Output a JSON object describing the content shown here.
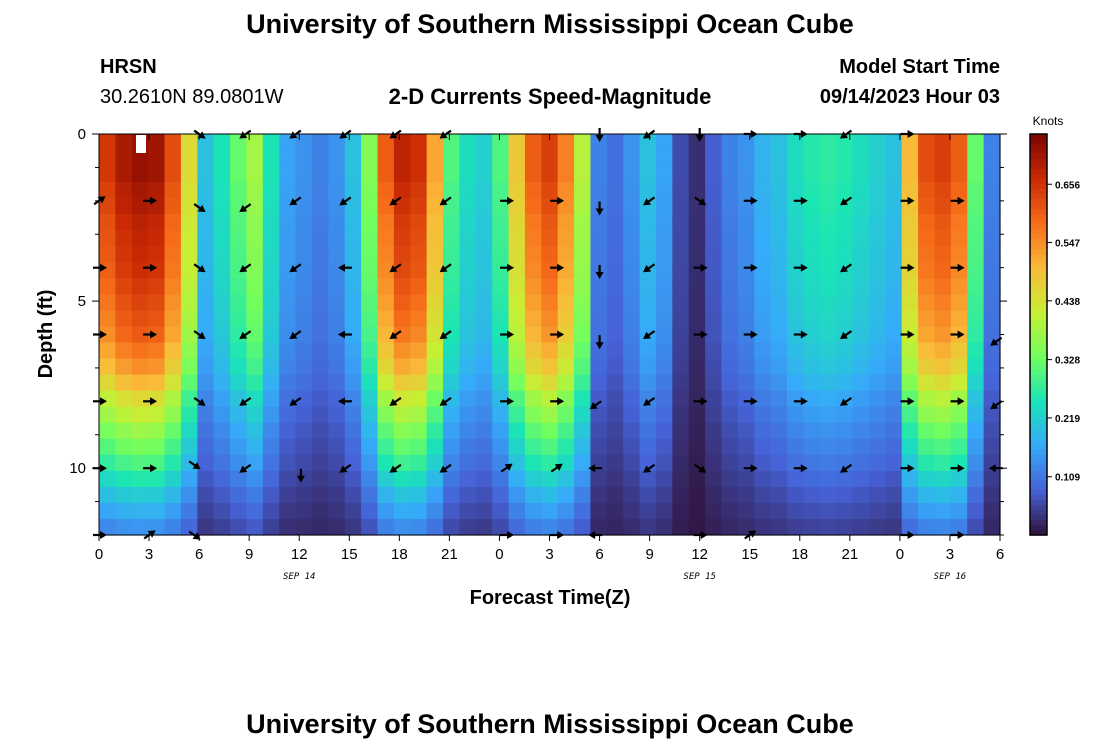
{
  "header": {
    "title": "University of Southern Mississippi Ocean Cube",
    "station": "HRSN",
    "coordinates": "30.2610N  89.0801W",
    "plot_title": "2-D Currents Speed-Magnitude",
    "model_start_label": "Model Start Time",
    "model_start_value": "09/14/2023 Hour 03"
  },
  "footer": {
    "title": "University of Southern Mississippi Ocean Cube"
  },
  "chart_data": {
    "type": "heatmap",
    "title": "2-D Currents Speed-Magnitude",
    "xlabel": "Forecast Time(Z)",
    "ylabel": "Depth (ft)",
    "x_range_hours": [
      0,
      54
    ],
    "ylim": [
      0,
      12
    ],
    "x_tick_labels": [
      "0",
      "3",
      "6",
      "9",
      "12",
      "15",
      "18",
      "21",
      "0",
      "3",
      "6",
      "9",
      "12",
      "15",
      "18",
      "21",
      "0",
      "3",
      "6"
    ],
    "y_ticks": [
      0,
      5,
      10
    ],
    "day_labels": [
      {
        "label": "SEP 14",
        "hour": 12
      },
      {
        "label": "SEP 15",
        "hour": 36
      },
      {
        "label": "SEP 16",
        "hour": 51
      }
    ],
    "colorbar": {
      "unit": "Knots",
      "range": [
        0.0,
        0.75
      ],
      "ticks": [
        "0.656",
        "0.547",
        "0.438",
        "0.328",
        "0.219",
        "0.109"
      ],
      "tick_values": [
        0.656,
        0.547,
        0.438,
        0.328,
        0.219,
        0.109
      ],
      "colors": [
        "#30123b",
        "#4662d7",
        "#36aaf9",
        "#1ae4b6",
        "#72fe5e",
        "#c7ef34",
        "#faba39",
        "#f66b19",
        "#ca2a04",
        "#7a0403"
      ]
    },
    "time_hours": [
      0,
      1,
      2,
      3,
      4,
      5,
      6,
      7,
      8,
      9,
      10,
      11,
      12,
      13,
      14,
      15,
      16,
      17,
      18,
      19,
      20,
      21,
      22,
      23,
      24,
      25,
      26,
      27,
      28,
      29,
      30,
      31,
      32,
      33,
      34,
      35,
      36,
      37,
      38,
      39,
      40,
      41,
      42,
      43,
      44,
      45,
      46,
      47,
      48,
      49,
      50,
      51,
      52,
      53,
      54
    ],
    "surface_speed_knots": [
      0.65,
      0.7,
      0.72,
      0.71,
      0.62,
      0.45,
      0.2,
      0.25,
      0.32,
      0.38,
      0.25,
      0.16,
      0.14,
      0.12,
      0.14,
      0.2,
      0.35,
      0.6,
      0.68,
      0.66,
      0.52,
      0.3,
      0.24,
      0.22,
      0.3,
      0.48,
      0.6,
      0.64,
      0.56,
      0.4,
      0.12,
      0.1,
      0.14,
      0.2,
      0.16,
      0.06,
      0.03,
      0.08,
      0.12,
      0.14,
      0.18,
      0.2,
      0.24,
      0.26,
      0.27,
      0.26,
      0.24,
      0.22,
      0.2,
      0.5,
      0.62,
      0.64,
      0.6,
      0.32,
      0.12
    ],
    "depth_factor": [
      1.0,
      1.0,
      1.0,
      0.98,
      0.97,
      0.95,
      0.94,
      0.93,
      0.92,
      0.9,
      0.88,
      0.86,
      0.84,
      0.8,
      0.76,
      0.7,
      0.63,
      0.58,
      0.52,
      0.47,
      0.42,
      0.36,
      0.3,
      0.25,
      0.2
    ],
    "arrows": [
      {
        "t": 0,
        "d": 2.0,
        "dir": "ne"
      },
      {
        "t": 0,
        "d": 4.0,
        "dir": "e"
      },
      {
        "t": 0,
        "d": 6.0,
        "dir": "e"
      },
      {
        "t": 0,
        "d": 8.0,
        "dir": "e"
      },
      {
        "t": 0,
        "d": 10.0,
        "dir": "e"
      },
      {
        "t": 0,
        "d": 12.0,
        "dir": "e"
      },
      {
        "t": 3,
        "d": 2.0,
        "dir": "e"
      },
      {
        "t": 3,
        "d": 4.0,
        "dir": "e"
      },
      {
        "t": 3,
        "d": 6.0,
        "dir": "e"
      },
      {
        "t": 3,
        "d": 8.0,
        "dir": "e"
      },
      {
        "t": 3,
        "d": 10.0,
        "dir": "e"
      },
      {
        "t": 3,
        "d": 12.0,
        "dir": "ne"
      },
      {
        "t": 6,
        "d": 0.0,
        "dir": "se"
      },
      {
        "t": 6,
        "d": 2.2,
        "dir": "se"
      },
      {
        "t": 6,
        "d": 4.0,
        "dir": "se"
      },
      {
        "t": 6,
        "d": 6.0,
        "dir": "se"
      },
      {
        "t": 6,
        "d": 8.0,
        "dir": "se"
      },
      {
        "t": 5.7,
        "d": 9.9,
        "dir": "se"
      },
      {
        "t": 5.7,
        "d": 12.0,
        "dir": "se"
      },
      {
        "t": 8.8,
        "d": 0.0,
        "dir": "sw"
      },
      {
        "t": 8.8,
        "d": 2.2,
        "dir": "sw"
      },
      {
        "t": 8.8,
        "d": 4.0,
        "dir": "sw"
      },
      {
        "t": 8.8,
        "d": 6.0,
        "dir": "sw"
      },
      {
        "t": 8.8,
        "d": 8.0,
        "dir": "sw"
      },
      {
        "t": 8.8,
        "d": 10.0,
        "dir": "sw"
      },
      {
        "t": 11.8,
        "d": 0.0,
        "dir": "sw"
      },
      {
        "t": 11.8,
        "d": 2.0,
        "dir": "sw"
      },
      {
        "t": 11.8,
        "d": 4.0,
        "dir": "sw"
      },
      {
        "t": 11.8,
        "d": 6.0,
        "dir": "sw"
      },
      {
        "t": 11.8,
        "d": 8.0,
        "dir": "sw"
      },
      {
        "t": 12.1,
        "d": 10.2,
        "dir": "s"
      },
      {
        "t": 14.8,
        "d": 0.0,
        "dir": "sw"
      },
      {
        "t": 14.8,
        "d": 2.0,
        "dir": "sw"
      },
      {
        "t": 14.8,
        "d": 4.0,
        "dir": "w"
      },
      {
        "t": 14.8,
        "d": 6.0,
        "dir": "w"
      },
      {
        "t": 14.8,
        "d": 8.0,
        "dir": "w"
      },
      {
        "t": 14.8,
        "d": 10.0,
        "dir": "sw"
      },
      {
        "t": 17.8,
        "d": 0.0,
        "dir": "sw"
      },
      {
        "t": 17.8,
        "d": 2.0,
        "dir": "sw"
      },
      {
        "t": 17.8,
        "d": 4.0,
        "dir": "sw"
      },
      {
        "t": 17.8,
        "d": 6.0,
        "dir": "sw"
      },
      {
        "t": 17.8,
        "d": 8.0,
        "dir": "sw"
      },
      {
        "t": 17.8,
        "d": 10.0,
        "dir": "sw"
      },
      {
        "t": 20.8,
        "d": 0.0,
        "dir": "sw"
      },
      {
        "t": 20.8,
        "d": 2.0,
        "dir": "sw"
      },
      {
        "t": 20.8,
        "d": 4.0,
        "dir": "sw"
      },
      {
        "t": 20.8,
        "d": 6.0,
        "dir": "sw"
      },
      {
        "t": 20.8,
        "d": 8.0,
        "dir": "sw"
      },
      {
        "t": 20.8,
        "d": 10.0,
        "dir": "sw"
      },
      {
        "t": 24.4,
        "d": 2.0,
        "dir": "e"
      },
      {
        "t": 24.4,
        "d": 4.0,
        "dir": "e"
      },
      {
        "t": 24.4,
        "d": 6.0,
        "dir": "e"
      },
      {
        "t": 24.4,
        "d": 8.0,
        "dir": "e"
      },
      {
        "t": 24.4,
        "d": 10.0,
        "dir": "ne"
      },
      {
        "t": 24.4,
        "d": 12.0,
        "dir": "e"
      },
      {
        "t": 27.4,
        "d": 2.0,
        "dir": "e"
      },
      {
        "t": 27.4,
        "d": 4.0,
        "dir": "e"
      },
      {
        "t": 27.4,
        "d": 6.0,
        "dir": "e"
      },
      {
        "t": 27.4,
        "d": 8.0,
        "dir": "e"
      },
      {
        "t": 27.4,
        "d": 10.0,
        "dir": "ne"
      },
      {
        "t": 27.4,
        "d": 12.0,
        "dir": "e"
      },
      {
        "t": 30.0,
        "d": 0.0,
        "dir": "s"
      },
      {
        "t": 30.0,
        "d": 2.2,
        "dir": "s"
      },
      {
        "t": 30.0,
        "d": 4.1,
        "dir": "s"
      },
      {
        "t": 30.0,
        "d": 6.2,
        "dir": "s"
      },
      {
        "t": 29.8,
        "d": 8.1,
        "dir": "sw"
      },
      {
        "t": 29.8,
        "d": 10.0,
        "dir": "w"
      },
      {
        "t": 29.8,
        "d": 12.0,
        "dir": "w"
      },
      {
        "t": 33.0,
        "d": 0.0,
        "dir": "sw"
      },
      {
        "t": 33.0,
        "d": 2.0,
        "dir": "sw"
      },
      {
        "t": 33.0,
        "d": 4.0,
        "dir": "sw"
      },
      {
        "t": 33.0,
        "d": 6.0,
        "dir": "sw"
      },
      {
        "t": 33.0,
        "d": 8.0,
        "dir": "sw"
      },
      {
        "t": 33.0,
        "d": 10.0,
        "dir": "sw"
      },
      {
        "t": 36.0,
        "d": 0.0,
        "dir": "s"
      },
      {
        "t": 36.0,
        "d": 2.0,
        "dir": "se"
      },
      {
        "t": 36.0,
        "d": 4.0,
        "dir": "e"
      },
      {
        "t": 36.0,
        "d": 6.0,
        "dir": "e"
      },
      {
        "t": 36.0,
        "d": 8.0,
        "dir": "e"
      },
      {
        "t": 36.0,
        "d": 10.0,
        "dir": "se"
      },
      {
        "t": 36.0,
        "d": 12.0,
        "dir": "e"
      },
      {
        "t": 39.0,
        "d": 0.0,
        "dir": "e"
      },
      {
        "t": 39.0,
        "d": 2.0,
        "dir": "e"
      },
      {
        "t": 39.0,
        "d": 4.0,
        "dir": "e"
      },
      {
        "t": 39.0,
        "d": 6.0,
        "dir": "e"
      },
      {
        "t": 39.0,
        "d": 8.0,
        "dir": "e"
      },
      {
        "t": 39.0,
        "d": 10.0,
        "dir": "e"
      },
      {
        "t": 39.0,
        "d": 12.0,
        "dir": "ne"
      },
      {
        "t": 42.0,
        "d": 0.0,
        "dir": "e"
      },
      {
        "t": 42.0,
        "d": 2.0,
        "dir": "e"
      },
      {
        "t": 42.0,
        "d": 4.0,
        "dir": "e"
      },
      {
        "t": 42.0,
        "d": 6.0,
        "dir": "e"
      },
      {
        "t": 42.0,
        "d": 8.0,
        "dir": "e"
      },
      {
        "t": 42.0,
        "d": 10.0,
        "dir": "e"
      },
      {
        "t": 44.8,
        "d": 0.0,
        "dir": "sw"
      },
      {
        "t": 44.8,
        "d": 2.0,
        "dir": "sw"
      },
      {
        "t": 44.8,
        "d": 4.0,
        "dir": "sw"
      },
      {
        "t": 44.8,
        "d": 6.0,
        "dir": "sw"
      },
      {
        "t": 44.8,
        "d": 8.0,
        "dir": "sw"
      },
      {
        "t": 44.8,
        "d": 10.0,
        "dir": "sw"
      },
      {
        "t": 48.4,
        "d": 0.0,
        "dir": "e"
      },
      {
        "t": 48.4,
        "d": 2.0,
        "dir": "e"
      },
      {
        "t": 48.4,
        "d": 4.0,
        "dir": "e"
      },
      {
        "t": 48.4,
        "d": 6.0,
        "dir": "e"
      },
      {
        "t": 48.4,
        "d": 8.0,
        "dir": "e"
      },
      {
        "t": 48.4,
        "d": 10.0,
        "dir": "e"
      },
      {
        "t": 48.4,
        "d": 12.0,
        "dir": "e"
      },
      {
        "t": 51.4,
        "d": 2.0,
        "dir": "e"
      },
      {
        "t": 51.4,
        "d": 4.0,
        "dir": "e"
      },
      {
        "t": 51.4,
        "d": 6.0,
        "dir": "e"
      },
      {
        "t": 51.4,
        "d": 8.0,
        "dir": "e"
      },
      {
        "t": 51.4,
        "d": 10.0,
        "dir": "e"
      },
      {
        "t": 51.4,
        "d": 12.0,
        "dir": "e"
      },
      {
        "t": 53.8,
        "d": 6.2,
        "dir": "sw"
      },
      {
        "t": 53.8,
        "d": 8.1,
        "dir": "sw"
      },
      {
        "t": 53.8,
        "d": 10.0,
        "dir": "w"
      }
    ]
  }
}
